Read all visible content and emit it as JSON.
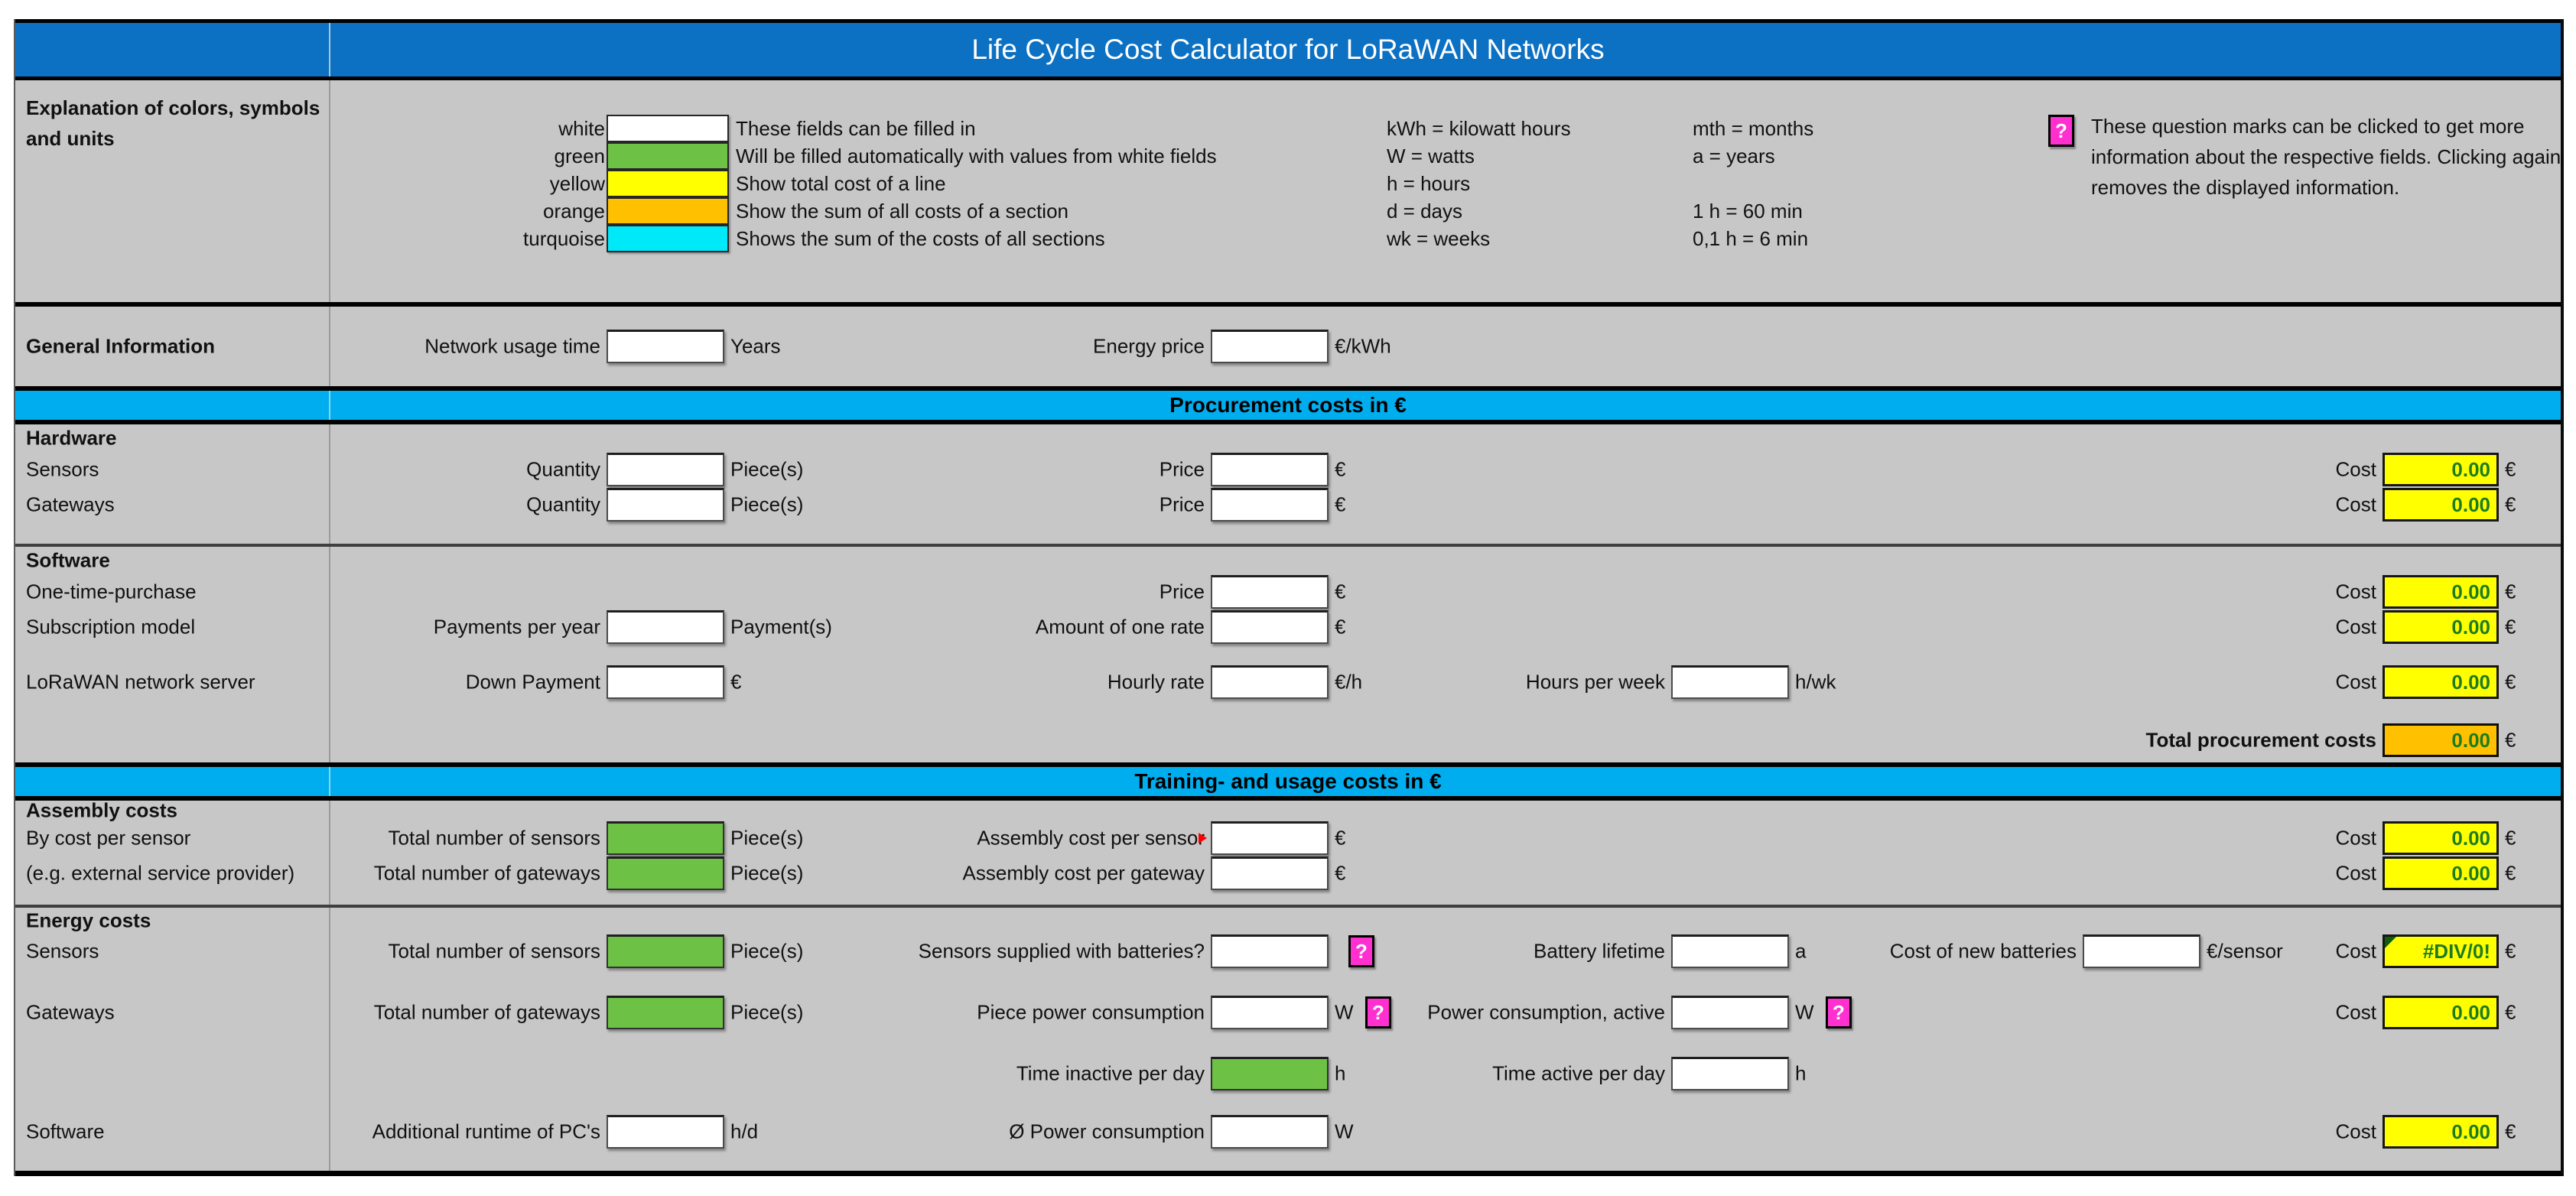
{
  "title": "Life Cycle Cost Calculator for LoRaWAN Networks",
  "bands": {
    "procurement": "Procurement costs in €",
    "training": "Training- and usage costs in €"
  },
  "colors": {
    "title_bar_blue": "#0C71C3",
    "band_cyan": "#00AEEF",
    "sheet_gray": "#C7C7C7",
    "fillable_white": "#FFFFFF",
    "auto_green": "#6DC245",
    "line_total_yellow": "#FFFF00",
    "section_total_orange": "#FFC000",
    "sections_total_turquoise": "#00E9F9",
    "help_pink": "#FF2FD0",
    "cost_value_green": "#1E7C1E"
  },
  "legend": {
    "heading_line1": "Explanation of colors, symbols",
    "heading_line2": "and units",
    "swatch_colors": {
      "white": "#FFFFFF",
      "green": "#6DC245",
      "yellow": "#FFFF00",
      "orange": "#FFC000",
      "turquoise": "#00E9F9"
    },
    "swatches": [
      {
        "name": "white",
        "desc": "These fields can be filled in"
      },
      {
        "name": "green",
        "desc": "Will be filled automatically with values from white fields"
      },
      {
        "name": "yellow",
        "desc": "Show total cost of a line"
      },
      {
        "name": "orange",
        "desc": "Show the sum of all costs of a section"
      },
      {
        "name": "turquoise",
        "desc": "Shows the sum of the costs of all sections"
      }
    ],
    "units_col1": [
      "kWh = kilowatt hours",
      "W = watts",
      "h = hours",
      "d = days",
      "wk = weeks"
    ],
    "units_col2": [
      "mth = months",
      "a = years",
      "",
      "1 h = 60 min",
      "0,1 h = 6 min"
    ],
    "help_icon": "?",
    "help_text": "These question marks can be clicked to get more information about the respective fields. Clicking again removes the displayed information."
  },
  "sections": {
    "general_info": {
      "rows": [
        {
          "left": "General Information",
          "bold": true,
          "h": 104,
          "fields": [
            {
              "label": "Network usage time",
              "col": "1",
              "box": "white",
              "value": "",
              "unit": "Years"
            },
            {
              "label": "Energy price",
              "col": "2",
              "box": "white",
              "value": "",
              "unit": "€/kWh"
            }
          ]
        }
      ]
    },
    "hardware": {
      "rows": [
        {
          "left": "Hardware",
          "bold": true,
          "h": 36
        },
        {
          "left": "Sensors",
          "h": 46,
          "fields": [
            {
              "label": "Quantity",
              "col": "1",
              "box": "white",
              "value": "",
              "unit": "Piece(s)"
            },
            {
              "label": "Price",
              "col": "2",
              "box": "white",
              "value": "",
              "unit": "€"
            },
            {
              "label": "Cost",
              "col": "cost",
              "box": "yellow",
              "value": "0.00",
              "unit": "€"
            }
          ]
        },
        {
          "left": "Gateways",
          "h": 46,
          "fields": [
            {
              "label": "Quantity",
              "col": "1",
              "box": "white",
              "value": "",
              "unit": "Piece(s)"
            },
            {
              "label": "Price",
              "col": "2",
              "box": "white",
              "value": "",
              "unit": "€"
            },
            {
              "label": "Cost",
              "col": "cost",
              "box": "yellow",
              "value": "0.00",
              "unit": "€"
            }
          ]
        },
        {
          "h": 28
        }
      ]
    },
    "software": {
      "rows": [
        {
          "left": "Software",
          "bold": true,
          "h": 36
        },
        {
          "left": "One-time-purchase",
          "h": 46,
          "fields": [
            {
              "label": "Price",
              "col": "2",
              "box": "white",
              "value": "",
              "unit": "€"
            },
            {
              "label": "Cost",
              "col": "cost",
              "box": "yellow",
              "value": "0.00",
              "unit": "€"
            }
          ]
        },
        {
          "left": "Subscription model",
          "h": 46,
          "fields": [
            {
              "label": "Payments per year",
              "col": "1",
              "box": "white",
              "value": "",
              "unit": "Payment(s)"
            },
            {
              "label": "Amount of one rate",
              "col": "2",
              "box": "white",
              "value": "",
              "unit": "€"
            },
            {
              "label": "Cost",
              "col": "cost",
              "box": "yellow",
              "value": "0.00",
              "unit": "€"
            }
          ]
        },
        {
          "h": 26
        },
        {
          "left": "LoRaWAN network server",
          "h": 46,
          "fields": [
            {
              "label": "Down Payment",
              "col": "1",
              "box": "white",
              "value": "",
              "unit": "€"
            },
            {
              "label": "Hourly rate",
              "col": "2",
              "box": "white",
              "value": "",
              "unit": "€/h"
            },
            {
              "label": "Hours per week",
              "col": "3",
              "box": "white",
              "value": "",
              "unit": "h/wk"
            },
            {
              "label": "Cost",
              "col": "cost",
              "box": "yellow",
              "value": "0.00",
              "unit": "€"
            }
          ]
        },
        {
          "h": 30
        },
        {
          "h": 46,
          "fields": [
            {
              "label": "Total procurement costs",
              "bold": true,
              "col": "cost",
              "box": "orange",
              "value": "0.00",
              "unit": "€"
            }
          ]
        },
        {
          "h": 6
        }
      ]
    },
    "assembly": {
      "rows": [
        {
          "left": "Assembly costs",
          "bold": true,
          "h": 26
        },
        {
          "left": "By cost per sensor",
          "h": 46,
          "fields": [
            {
              "label": "Total number of sensors",
              "col": "1",
              "box": "green",
              "value": "",
              "unit": "Piece(s)"
            },
            {
              "label": "Assembly cost per sensor",
              "col": "2",
              "box": "white",
              "value": "",
              "unit": "€",
              "red": true
            },
            {
              "label": "Cost",
              "col": "cost",
              "box": "yellow",
              "value": "0.00",
              "unit": "€"
            }
          ]
        },
        {
          "left": "(e.g. external service provider)",
          "h": 46,
          "fields": [
            {
              "label": "Total number of gateways",
              "col": "1",
              "box": "green",
              "value": "",
              "unit": "Piece(s)"
            },
            {
              "label": "Assembly cost per gateway",
              "col": "2",
              "box": "white",
              "value": "",
              "unit": "€"
            },
            {
              "label": "Cost",
              "col": "cost",
              "box": "yellow",
              "value": "0.00",
              "unit": "€"
            }
          ]
        },
        {
          "h": 18
        }
      ]
    },
    "energy": {
      "rows": [
        {
          "left": "Energy costs",
          "bold": true,
          "h": 34
        },
        {
          "left": "Sensors",
          "h": 46,
          "fields": [
            {
              "label": "Total number of sensors",
              "col": "1",
              "box": "green",
              "value": "",
              "unit": "Piece(s)"
            },
            {
              "label": "Sensors supplied with batteries?",
              "col": "2",
              "box": "white",
              "value": "",
              "q": true
            },
            {
              "label": "Battery lifetime",
              "col": "3",
              "box": "white",
              "value": "",
              "unit": "a"
            },
            {
              "label": "Cost of new batteries",
              "col": "4",
              "box": "white",
              "value": "",
              "unit": "€/sensor"
            },
            {
              "label": "Cost",
              "col": "cost",
              "box": "yellow",
              "value": "#DIV/0!",
              "unit": "€",
              "corner": true
            }
          ]
        },
        {
          "h": 34
        },
        {
          "left": "Gateways",
          "h": 46,
          "fields": [
            {
              "label": "Total number of gateways",
              "col": "1",
              "box": "green",
              "value": "",
              "unit": "Piece(s)"
            },
            {
              "label": "Piece power consumption",
              "col": "2",
              "box": "white",
              "value": "",
              "unit": "W",
              "q": true
            },
            {
              "label": "Power consumption, active",
              "col": "3",
              "box": "white",
              "value": "",
              "unit": "W",
              "q": true
            },
            {
              "label": "Cost",
              "col": "cost",
              "box": "yellow",
              "value": "0.00",
              "unit": "€"
            }
          ]
        },
        {
          "h": 34
        },
        {
          "h": 46,
          "fields": [
            {
              "label": "Time inactive per day",
              "col": "2",
              "box": "green",
              "value": "",
              "unit": "h"
            },
            {
              "label": "Time active per day",
              "col": "3",
              "box": "white",
              "value": "",
              "unit": "h"
            }
          ]
        },
        {
          "h": 30
        },
        {
          "left": "Software",
          "h": 46,
          "fields": [
            {
              "label": "Additional runtime of PC's",
              "col": "1",
              "box": "white",
              "value": "",
              "unit": "h/d"
            },
            {
              "label": "Ø Power consumption",
              "col": "2",
              "box": "white",
              "value": "",
              "unit": "W"
            },
            {
              "label": "Cost",
              "col": "cost",
              "box": "yellow",
              "value": "0.00",
              "unit": "€"
            }
          ]
        },
        {
          "h": 28
        }
      ]
    }
  }
}
